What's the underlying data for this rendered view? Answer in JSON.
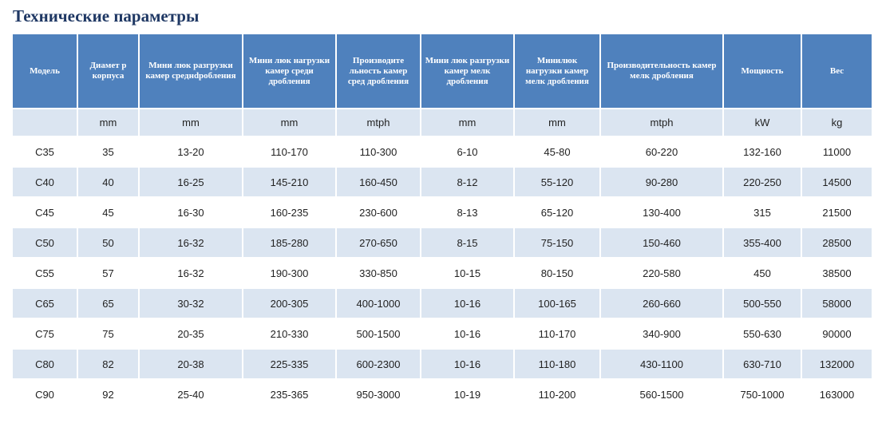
{
  "title": "Технические параметры",
  "headers": [
    "Модель",
    "Диамет р корпуса",
    "Мини люк разгрузки камер среднdробления",
    "Мини люк нагрузки камер среди дробления",
    "Производите льность камер сред дробления",
    "Мини люк разгрузки камер мелк дробления",
    "Минилюк нагрузки камер мелк дробления",
    "Производительность камер мелк дробления",
    "Мощность",
    "Вес"
  ],
  "units": [
    "",
    "mm",
    "mm",
    "mm",
    "mtph",
    "mm",
    "mm",
    "mtph",
    "kW",
    "kg"
  ],
  "rows": [
    [
      "C35",
      "35",
      "13-20",
      "110-170",
      "110-300",
      "6-10",
      "45-80",
      "60-220",
      "132-160",
      "11000"
    ],
    [
      "C40",
      "40",
      "16-25",
      "145-210",
      "160-450",
      "8-12",
      "55-120",
      "90-280",
      "220-250",
      "14500"
    ],
    [
      "C45",
      "45",
      "16-30",
      "160-235",
      "230-600",
      "8-13",
      "65-120",
      "130-400",
      "315",
      "21500"
    ],
    [
      "C50",
      "50",
      "16-32",
      "185-280",
      "270-650",
      "8-15",
      "75-150",
      "150-460",
      "355-400",
      "28500"
    ],
    [
      "C55",
      "57",
      "16-32",
      "190-300",
      "330-850",
      "10-15",
      "80-150",
      "220-580",
      "450",
      "38500"
    ],
    [
      "C65",
      "65",
      "30-32",
      "200-305",
      "400-1000",
      "10-16",
      "100-165",
      "260-660",
      "500-550",
      "58000"
    ],
    [
      "C75",
      "75",
      "20-35",
      "210-330",
      "500-1500",
      "10-16",
      "110-170",
      "340-900",
      "550-630",
      "90000"
    ],
    [
      "C80",
      "82",
      "20-38",
      "225-335",
      "600-2300",
      "10-16",
      "110-180",
      "430-1100",
      "630-710",
      "132000"
    ],
    [
      "C90",
      "92",
      "25-40",
      "235-365",
      "950-3000",
      "10-19",
      "110-200",
      "560-1500",
      "750-1000",
      "163000"
    ]
  ],
  "colors": {
    "header_bg": "#4f81bd",
    "stripe_bg": "#dbe5f1",
    "title_color": "#1f3864"
  }
}
